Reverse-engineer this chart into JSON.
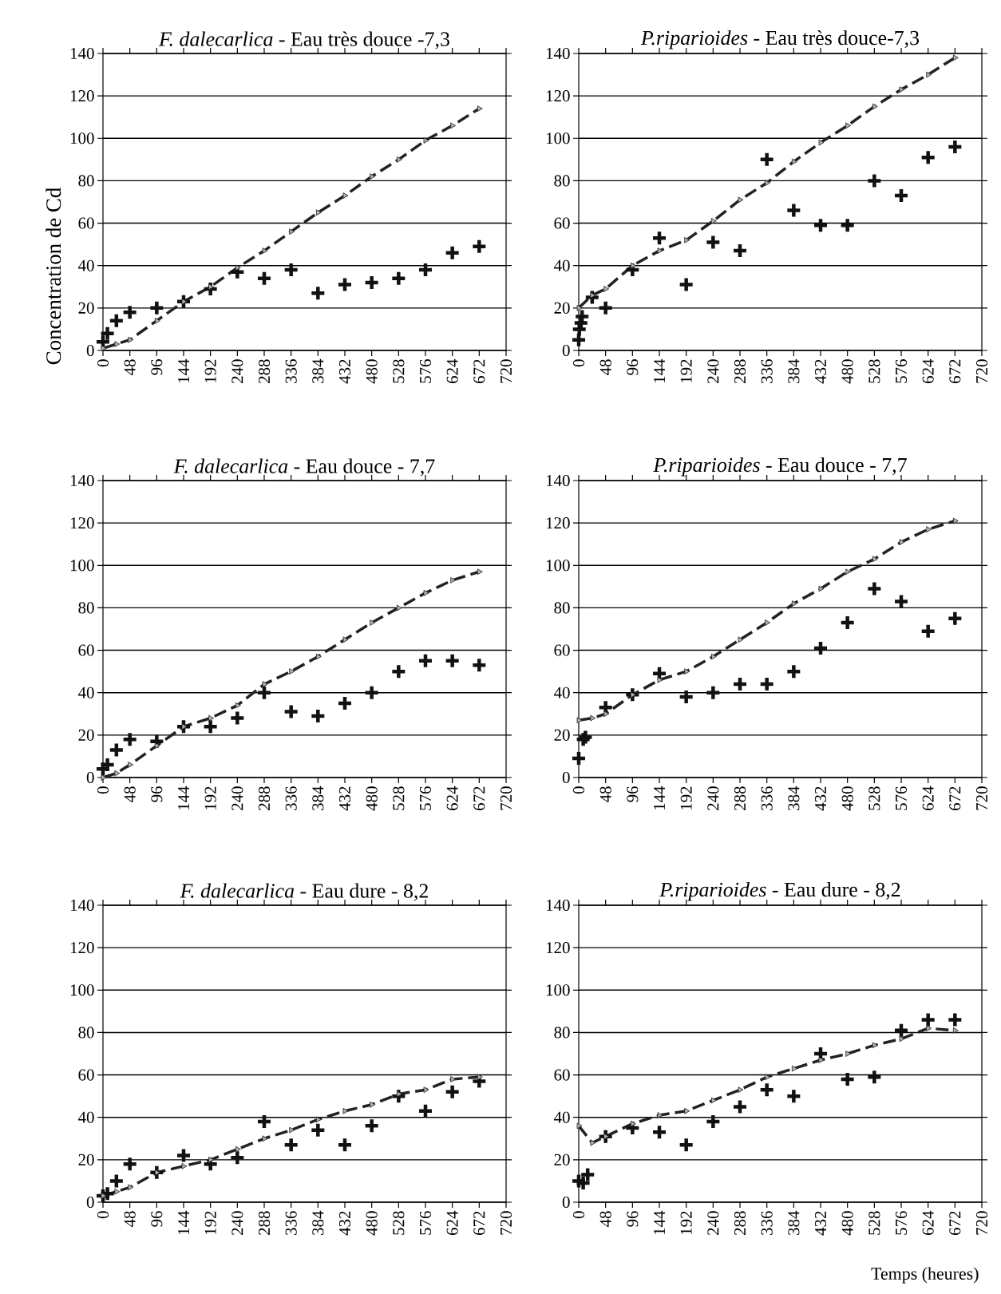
{
  "chart_data": [
    {
      "type": "scatter",
      "title": "*F. dalecarlica* - Eau très douce -7,3",
      "ylabel": "Concentration de Cd",
      "xlim": [
        0,
        720
      ],
      "ylim": [
        0,
        140
      ],
      "xticks": [
        0,
        48,
        96,
        144,
        192,
        240,
        288,
        336,
        384,
        432,
        480,
        528,
        576,
        624,
        672,
        720
      ],
      "yticks": [
        0,
        20,
        40,
        60,
        80,
        100,
        120,
        140
      ],
      "grid": "y",
      "series": [
        {
          "marker": "cross",
          "color": "#111111",
          "x": [
            0,
            8,
            24,
            48,
            96,
            144,
            192,
            240,
            288,
            336,
            384,
            432,
            480,
            528,
            576,
            624,
            672
          ],
          "values": [
            4,
            8,
            14,
            18,
            20,
            23,
            29,
            37,
            34,
            38,
            27,
            31,
            32,
            34,
            38,
            46,
            49
          ]
        },
        {
          "type": "line",
          "line_style": "dashed",
          "marker": "triangle",
          "color": "#222222",
          "x": [
            0,
            24,
            48,
            96,
            144,
            192,
            240,
            288,
            336,
            384,
            432,
            480,
            528,
            576,
            624,
            672
          ],
          "values": [
            1,
            3,
            5,
            14,
            23,
            30,
            39,
            47,
            56,
            65,
            73,
            82,
            90,
            99,
            106,
            114
          ]
        }
      ]
    },
    {
      "type": "scatter",
      "title": "*P.riparioides* - Eau très douce-7,3",
      "xlim": [
        0,
        720
      ],
      "ylim": [
        0,
        140
      ],
      "xticks": [
        0,
        48,
        96,
        144,
        192,
        240,
        288,
        336,
        384,
        432,
        480,
        528,
        576,
        624,
        672,
        720
      ],
      "yticks": [
        0,
        20,
        40,
        60,
        80,
        100,
        120,
        140
      ],
      "grid": "y",
      "series": [
        {
          "marker": "cross",
          "color": "#111111",
          "x": [
            0,
            1,
            4,
            6,
            24,
            48,
            96,
            144,
            192,
            240,
            288,
            336,
            384,
            432,
            480,
            528,
            576,
            624,
            672
          ],
          "values": [
            5,
            10,
            13,
            16,
            25,
            20,
            38,
            53,
            31,
            51,
            47,
            90,
            66,
            59,
            59,
            80,
            73,
            91,
            96
          ]
        },
        {
          "type": "line",
          "line_style": "dashed",
          "marker": "triangle",
          "color": "#222222",
          "x": [
            0,
            24,
            48,
            96,
            144,
            192,
            240,
            288,
            336,
            384,
            432,
            480,
            528,
            576,
            624,
            672
          ],
          "values": [
            20,
            26,
            29,
            40,
            47,
            52,
            61,
            71,
            79,
            89,
            98,
            106,
            115,
            123,
            130,
            138
          ]
        }
      ]
    },
    {
      "type": "scatter",
      "title": "*F. dalecarlica* - Eau douce - 7,7",
      "xlim": [
        0,
        720
      ],
      "ylim": [
        0,
        140
      ],
      "xticks": [
        0,
        48,
        96,
        144,
        192,
        240,
        288,
        336,
        384,
        432,
        480,
        528,
        576,
        624,
        672,
        720
      ],
      "yticks": [
        0,
        20,
        40,
        60,
        80,
        100,
        120,
        140
      ],
      "grid": "y",
      "series": [
        {
          "marker": "cross",
          "color": "#111111",
          "x": [
            0,
            8,
            24,
            48,
            96,
            144,
            192,
            240,
            288,
            336,
            384,
            432,
            480,
            528,
            576,
            624,
            672
          ],
          "values": [
            4,
            6,
            13,
            18,
            17,
            24,
            24,
            28,
            40,
            31,
            29,
            35,
            40,
            50,
            55,
            55,
            53
          ]
        },
        {
          "type": "line",
          "line_style": "dashed",
          "marker": "triangle",
          "color": "#222222",
          "x": [
            0,
            24,
            48,
            96,
            144,
            192,
            240,
            288,
            336,
            384,
            432,
            480,
            528,
            576,
            624,
            672
          ],
          "values": [
            0,
            2,
            6,
            15,
            24,
            28,
            34,
            44,
            50,
            57,
            65,
            73,
            80,
            87,
            93,
            97
          ]
        }
      ]
    },
    {
      "type": "scatter",
      "title": "*P.riparioides* - Eau douce - 7,7",
      "xlim": [
        0,
        720
      ],
      "ylim": [
        0,
        140
      ],
      "xticks": [
        0,
        48,
        96,
        144,
        192,
        240,
        288,
        336,
        384,
        432,
        480,
        528,
        576,
        624,
        672,
        720
      ],
      "yticks": [
        0,
        20,
        40,
        60,
        80,
        100,
        120,
        140
      ],
      "grid": "y",
      "series": [
        {
          "marker": "cross",
          "color": "#111111",
          "x": [
            0,
            8,
            12,
            48,
            96,
            144,
            192,
            240,
            288,
            336,
            384,
            432,
            480,
            528,
            576,
            624,
            672
          ],
          "values": [
            9,
            18,
            19,
            33,
            39,
            49,
            38,
            40,
            44,
            44,
            50,
            61,
            73,
            89,
            83,
            69,
            75
          ]
        },
        {
          "type": "line",
          "line_style": "dashed",
          "marker": "triangle",
          "color": "#222222",
          "x": [
            0,
            24,
            48,
            96,
            144,
            192,
            240,
            288,
            336,
            384,
            432,
            480,
            528,
            576,
            624,
            672
          ],
          "values": [
            27,
            28,
            30,
            39,
            46,
            50,
            57,
            65,
            73,
            82,
            89,
            97,
            103,
            111,
            117,
            121
          ]
        }
      ]
    },
    {
      "type": "scatter",
      "title": "*F. dalecarlica* - Eau dure - 8,2",
      "xlim": [
        0,
        720
      ],
      "ylim": [
        0,
        140
      ],
      "xticks": [
        0,
        48,
        96,
        144,
        192,
        240,
        288,
        336,
        384,
        432,
        480,
        528,
        576,
        624,
        672,
        720
      ],
      "yticks": [
        0,
        20,
        40,
        60,
        80,
        100,
        120,
        140
      ],
      "grid": "y",
      "series": [
        {
          "marker": "cross",
          "color": "#111111",
          "x": [
            0,
            8,
            24,
            48,
            96,
            144,
            192,
            240,
            288,
            336,
            384,
            432,
            480,
            528,
            576,
            624,
            672
          ],
          "values": [
            3,
            4,
            10,
            18,
            14,
            22,
            18,
            21,
            38,
            27,
            34,
            27,
            36,
            50,
            43,
            52,
            57
          ]
        },
        {
          "type": "line",
          "line_style": "dashed",
          "marker": "triangle",
          "color": "#222222",
          "x": [
            0,
            24,
            48,
            96,
            144,
            192,
            240,
            288,
            336,
            384,
            432,
            480,
            528,
            576,
            624,
            672
          ],
          "values": [
            3,
            5,
            7,
            14,
            17,
            20,
            25,
            30,
            34,
            39,
            43,
            46,
            51,
            53,
            58,
            59
          ]
        }
      ]
    },
    {
      "type": "scatter",
      "title": "*P.riparioides* - Eau dure - 8,2",
      "xlabel": "Temps (heures)",
      "xlim": [
        0,
        720
      ],
      "ylim": [
        0,
        140
      ],
      "xticks": [
        0,
        48,
        96,
        144,
        192,
        240,
        288,
        336,
        384,
        432,
        480,
        528,
        576,
        624,
        672,
        720
      ],
      "yticks": [
        0,
        20,
        40,
        60,
        80,
        100,
        120,
        140
      ],
      "grid": "y",
      "series": [
        {
          "marker": "cross",
          "color": "#111111",
          "x": [
            0,
            8,
            16,
            48,
            96,
            144,
            192,
            240,
            288,
            336,
            384,
            432,
            480,
            528,
            576,
            624,
            672
          ],
          "values": [
            10,
            9,
            13,
            31,
            35,
            33,
            27,
            38,
            45,
            53,
            50,
            70,
            58,
            59,
            81,
            86,
            86
          ]
        },
        {
          "type": "line",
          "line_style": "dashed",
          "marker": "triangle",
          "color": "#222222",
          "x": [
            0,
            24,
            48,
            96,
            144,
            192,
            240,
            288,
            336,
            384,
            432,
            480,
            528,
            576,
            624,
            672
          ],
          "values": [
            36,
            28,
            31,
            37,
            41,
            43,
            48,
            53,
            59,
            63,
            67,
            70,
            74,
            77,
            82,
            81
          ]
        }
      ]
    }
  ]
}
